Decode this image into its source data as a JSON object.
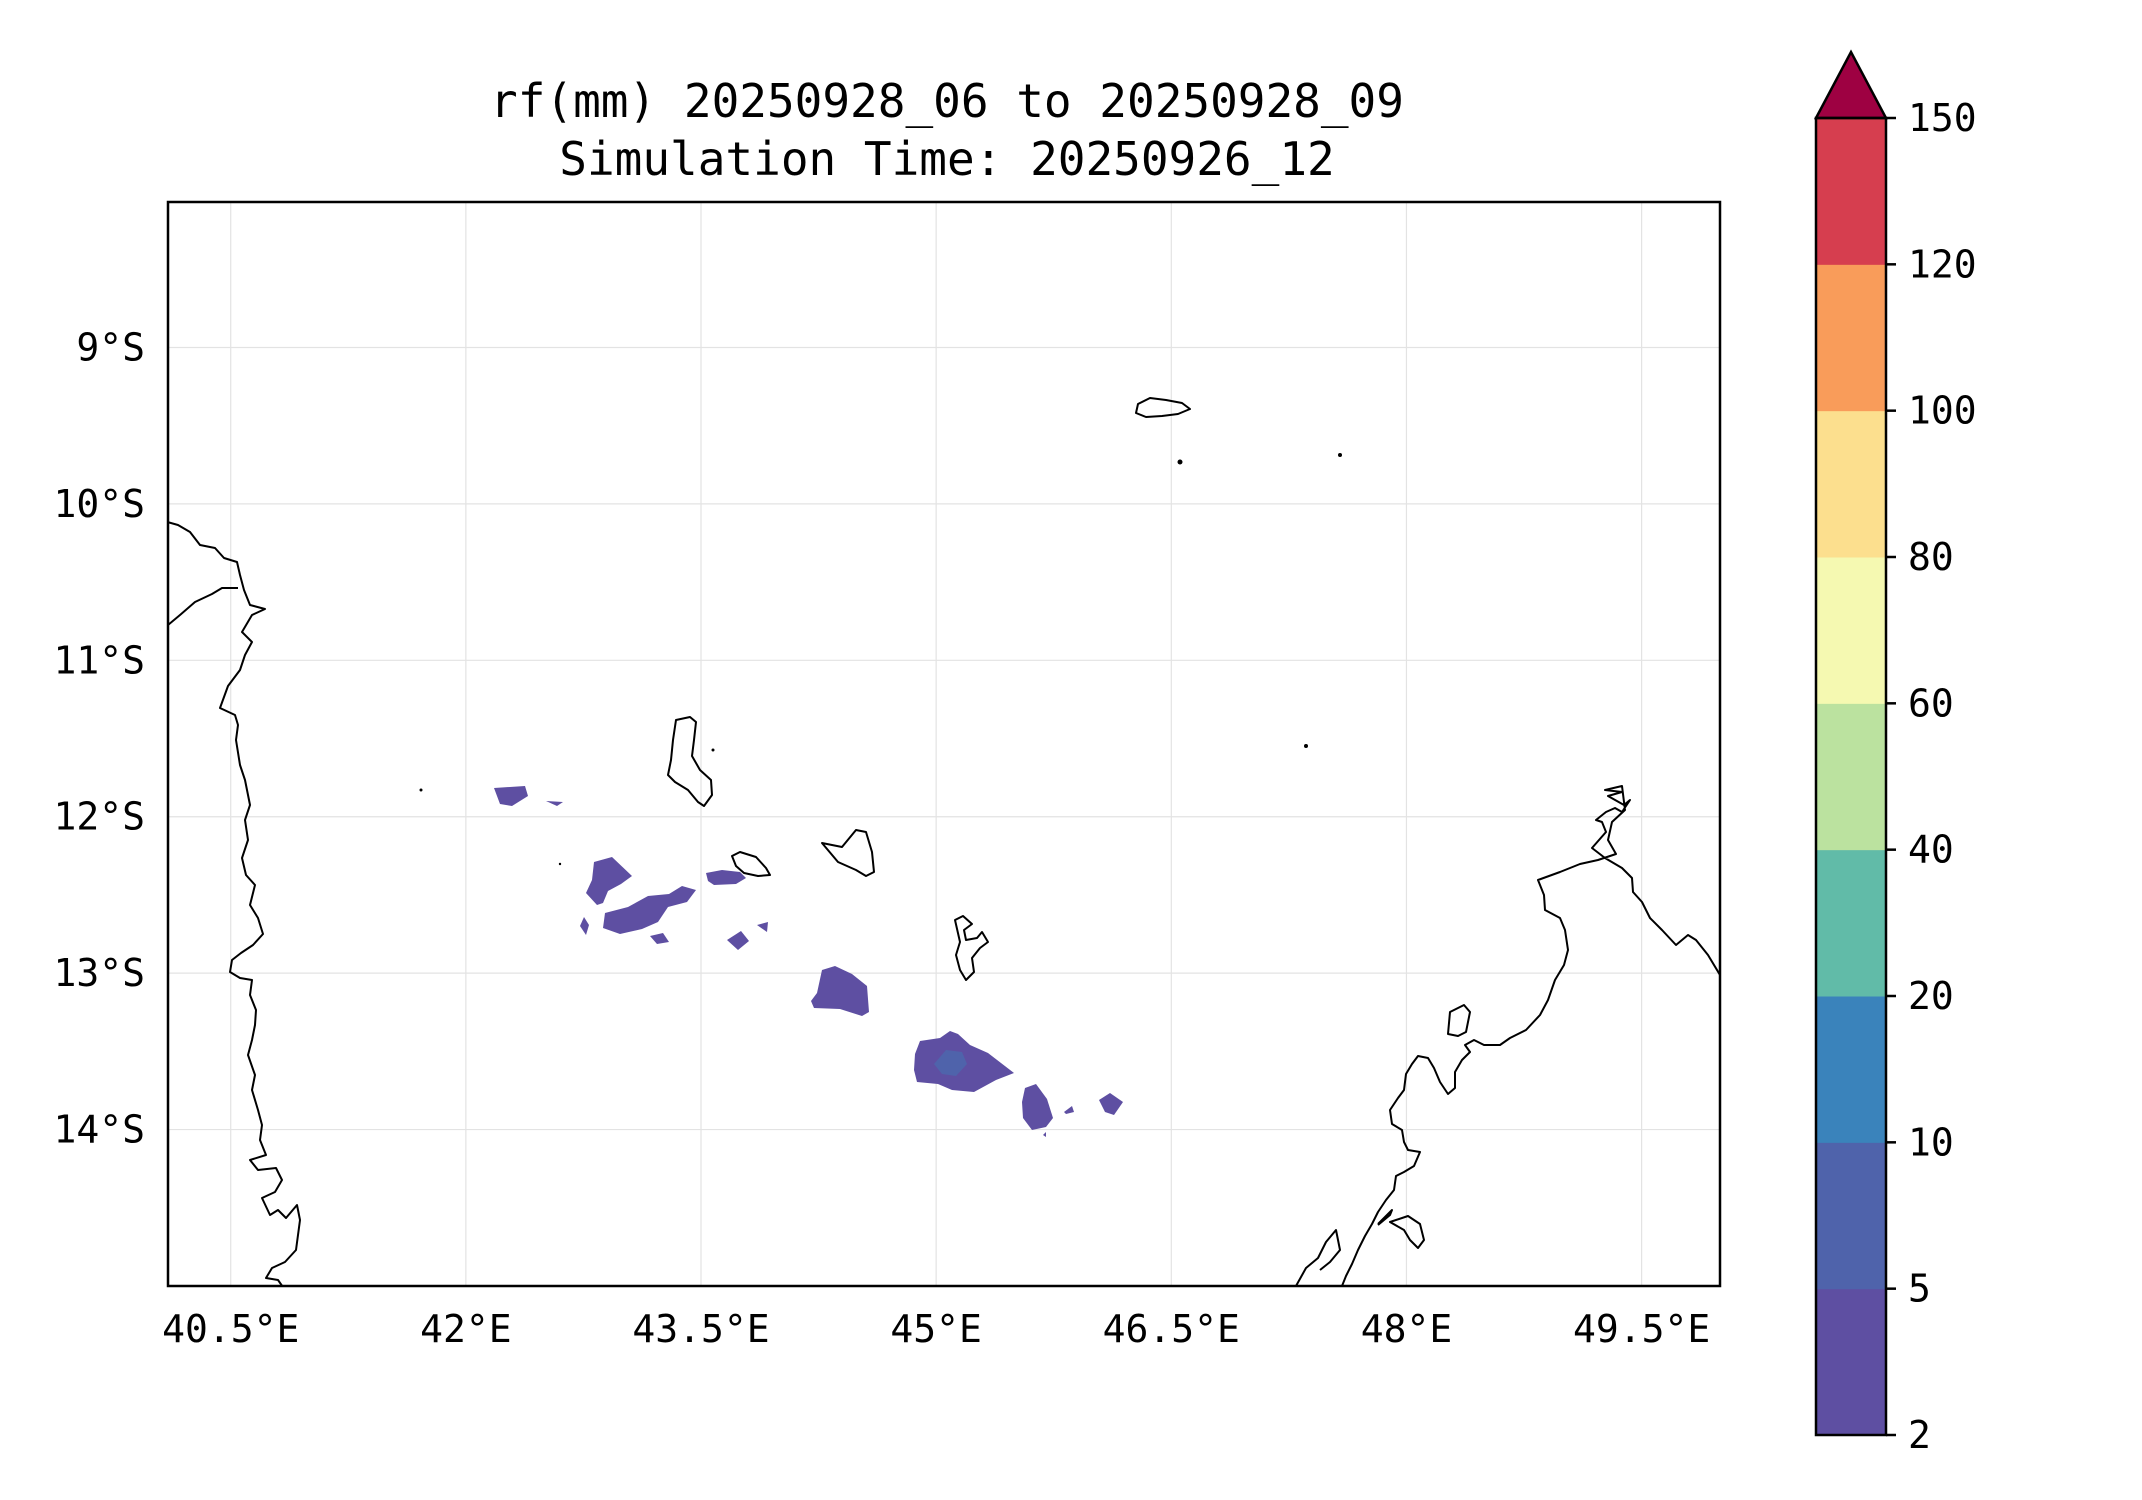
{
  "title": {
    "line1": "rf(mm) 20250928_06 to 20250928_09",
    "line2": "Simulation Time: 20250926_12"
  },
  "map": {
    "lon_range": [
      40.1,
      50.0
    ],
    "lat_range": [
      -15.0,
      -8.07
    ],
    "lon_ticks": [
      40.5,
      42,
      43.5,
      45,
      46.5,
      48,
      49.5
    ],
    "lon_tick_labels": [
      "40.5°E",
      "42°E",
      "43.5°E",
      "45°E",
      "46.5°E",
      "48°E",
      "49.5°E"
    ],
    "lat_ticks": [
      -9,
      -10,
      -11,
      -12,
      -13,
      -14
    ],
    "lat_tick_labels": [
      "9°S",
      "10°S",
      "11°S",
      "12°S",
      "13°S",
      "14°S"
    ],
    "gridlines": true,
    "coastline_color": "#000000"
  },
  "colorbar": {
    "levels": [
      2,
      5,
      10,
      20,
      40,
      60,
      80,
      100,
      120,
      150
    ],
    "tick_labels": [
      "2",
      "5",
      "10",
      "20",
      "40",
      "60",
      "80",
      "100",
      "120",
      "150"
    ],
    "colors": [
      "#5e4fa2",
      "#4f63ab",
      "#3a83bb",
      "#61bba8",
      "#bbe29f",
      "#f5f9b1",
      "#fcdf8e",
      "#f99c5a",
      "#d63e4f"
    ],
    "extend_color": "#9e0142",
    "extend": "max"
  },
  "chart_data": {
    "type": "heatmap",
    "title": "rf(mm) 20250928_06 to 20250928_09\nSimulation Time: 20250926_12",
    "variable": "rf",
    "units": "mm",
    "xlim": [
      40.1,
      50.0
    ],
    "ylim": [
      -15.0,
      -8.07
    ],
    "rain_cells": [
      {
        "lon": 42.2,
        "lat": -11.87,
        "value_range": [
          2,
          5
        ]
      },
      {
        "lon": 42.95,
        "lat": -12.45,
        "value_range": [
          2,
          5
        ]
      },
      {
        "lon": 43.2,
        "lat": -12.55,
        "value_range": [
          2,
          5
        ]
      },
      {
        "lon": 43.65,
        "lat": -12.38,
        "value_range": [
          2,
          5
        ]
      },
      {
        "lon": 43.6,
        "lat": -12.78,
        "value_range": [
          2,
          5
        ]
      },
      {
        "lon": 44.3,
        "lat": -13.15,
        "value_range": [
          2,
          5
        ]
      },
      {
        "lon": 45.05,
        "lat": -13.58,
        "value_range": [
          2,
          10
        ]
      },
      {
        "lon": 45.6,
        "lat": -13.85,
        "value_range": [
          2,
          5
        ]
      },
      {
        "lon": 46.05,
        "lat": -13.8,
        "value_range": [
          2,
          5
        ]
      }
    ]
  }
}
